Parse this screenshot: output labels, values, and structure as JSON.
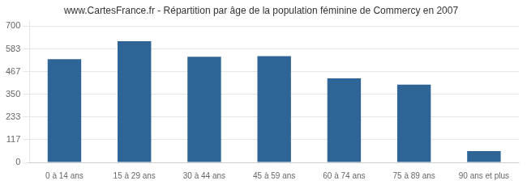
{
  "chart_data": {
    "type": "bar",
    "title": "www.CartesFrance.fr - Répartition par âge de la population féminine de Commercy en 2007",
    "categories": [
      "0 à 14 ans",
      "15 à 29 ans",
      "30 à 44 ans",
      "45 à 59 ans",
      "60 à 74 ans",
      "75 à 89 ans",
      "90 ans et plus"
    ],
    "values": [
      530,
      623,
      543,
      546,
      432,
      400,
      58
    ],
    "color": "#2e6496",
    "ylim": [
      0,
      725
    ],
    "yticks": [
      0,
      117,
      233,
      350,
      467,
      583,
      700
    ],
    "grid": true
  }
}
